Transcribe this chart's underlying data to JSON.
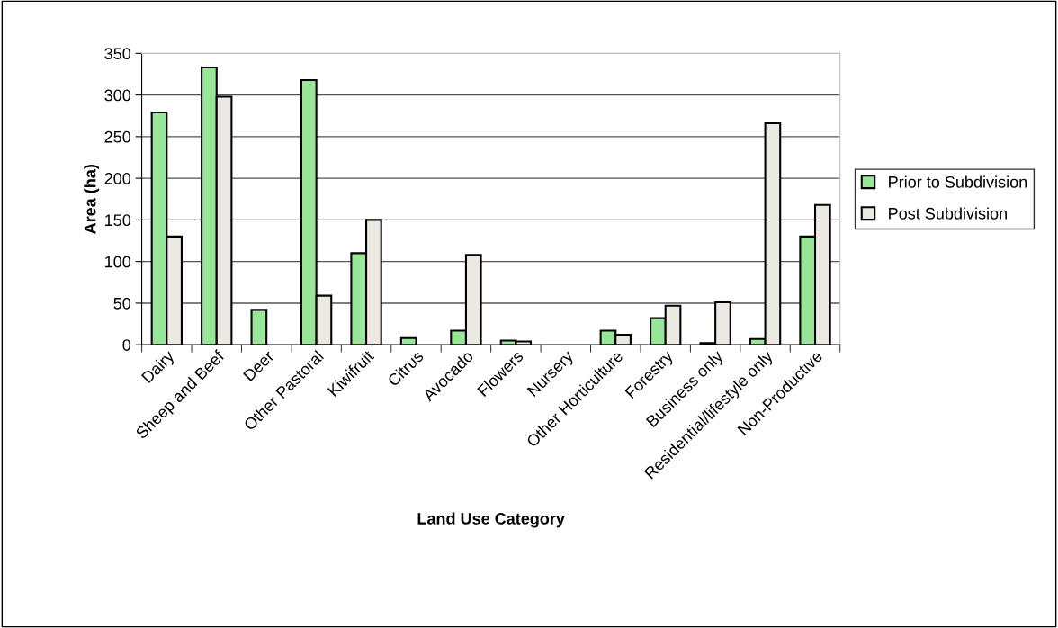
{
  "chart_data": {
    "type": "bar",
    "xlabel": "Land Use Category",
    "ylabel": "Area (ha)",
    "categories": [
      "Dairy",
      "Sheep and Beef",
      "Deer",
      "Other Pastoral",
      "Kiwifruit",
      "Citrus",
      "Avocado",
      "Flowers",
      "Nursery",
      "Other Horticulture",
      "Forestry",
      "Business only",
      "Residential/lifestyle only",
      "Non-Productive"
    ],
    "series": [
      {
        "name": "Prior to Subdivision",
        "color": "#99e699",
        "values": [
          279,
          333,
          42,
          318,
          110,
          8,
          17,
          5,
          null,
          17,
          32,
          2,
          7,
          130
        ]
      },
      {
        "name": "Post Subdivision",
        "color": "#ece8e2",
        "values": [
          130,
          298,
          null,
          59,
          150,
          null,
          108,
          4,
          null,
          12,
          47,
          51,
          266,
          168
        ]
      }
    ],
    "ylim": [
      0,
      350
    ],
    "yticks": [
      0,
      50,
      100,
      150,
      200,
      250,
      300,
      350
    ],
    "grid": "y",
    "legend": "right"
  }
}
